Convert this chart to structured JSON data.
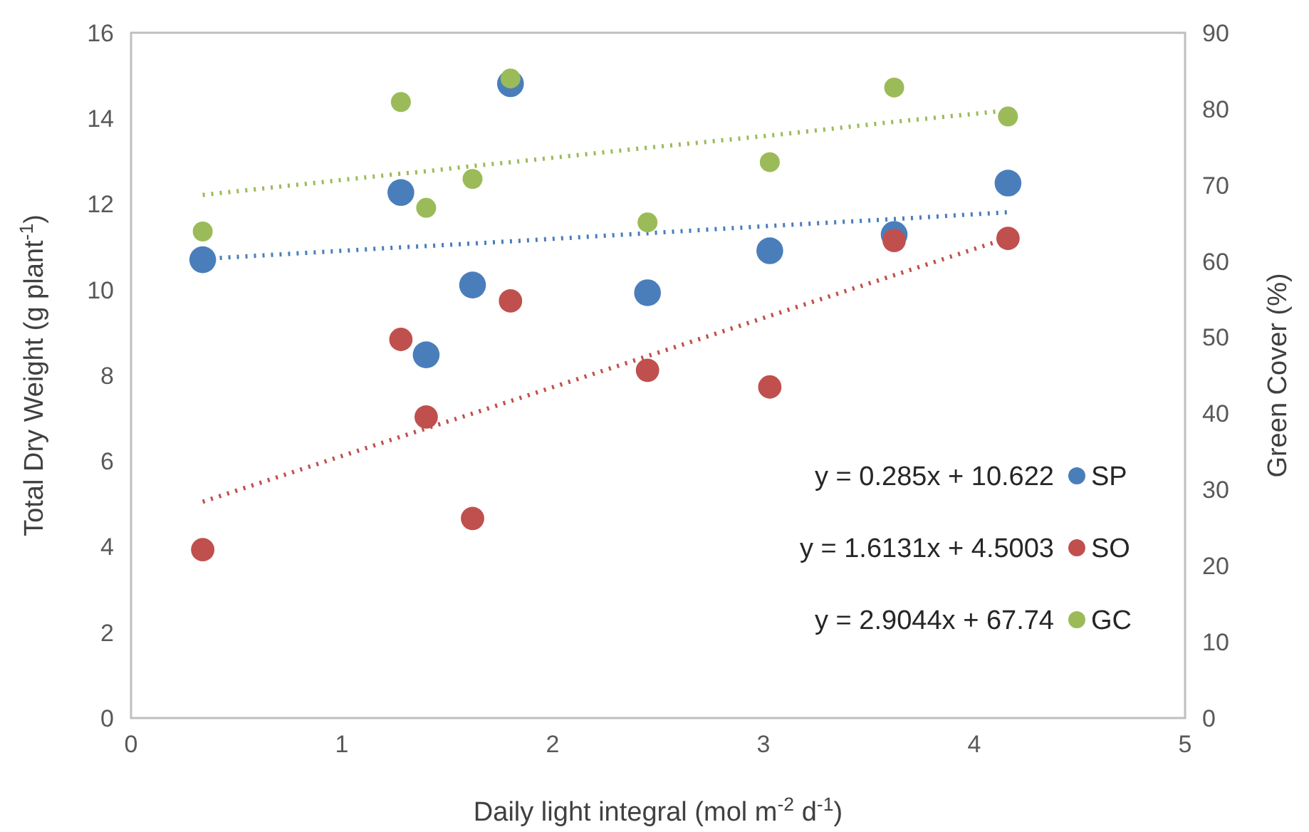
{
  "chart_data": {
    "type": "scatter",
    "xlabel": "Daily light integral (mol m$^{-2}$ d$^{-1}$)",
    "ylabel": "Total Dry Weight (g plant$^{-1}$)",
    "y2label": "Green Cover (%)",
    "xlim": [
      0,
      5
    ],
    "xticks": [
      0,
      1,
      2,
      3,
      4,
      5
    ],
    "ylim": [
      0,
      16
    ],
    "yticks": [
      0,
      2,
      4,
      6,
      8,
      10,
      12,
      14,
      16
    ],
    "y2lim": [
      0,
      90
    ],
    "y2ticks": [
      0,
      10,
      20,
      30,
      40,
      50,
      60,
      70,
      80,
      90
    ],
    "x": [
      0.34,
      1.28,
      1.4,
      1.62,
      1.8,
      2.45,
      3.03,
      3.62,
      4.16
    ],
    "grid": false,
    "legend": "bottom right",
    "marker": "circle",
    "series": [
      {
        "name": "SP",
        "color": "#4a7ebb",
        "values": [
          10.7,
          12.27,
          8.48,
          10.11,
          14.81,
          9.93,
          10.91,
          11.29,
          12.49
        ]
      },
      {
        "name": "SO",
        "color": "#c0504d",
        "values": [
          3.93,
          8.84,
          7.03,
          4.66,
          9.74,
          8.12,
          7.73,
          11.15,
          11.2
        ]
      },
      {
        "name": "GC",
        "color": "#9bbb59",
        "axis": "y2",
        "values": [
          63.9,
          80.9,
          67.0,
          70.8,
          84.0,
          65.1,
          73.0,
          82.8,
          79.0
        ]
      },
      {
        "type": "line",
        "color": "#4a7ebb",
        "line_style": "dotted",
        "marker": "none",
        "values": [
          10.72,
          10.99,
          11.02,
          11.08,
          11.13,
          11.32,
          11.49,
          11.65,
          11.81
        ]
      },
      {
        "type": "line",
        "color": "#c0504d",
        "line_style": "dotted",
        "marker": "none",
        "values": [
          5.05,
          6.57,
          6.76,
          7.11,
          7.4,
          8.45,
          9.39,
          10.34,
          11.21
        ]
      },
      {
        "type": "line",
        "color": "#9bbb59",
        "line_style": "dotted",
        "axis": "y2",
        "marker": "none",
        "values": [
          68.7,
          71.5,
          71.8,
          72.5,
          73.0,
          74.9,
          76.5,
          78.3,
          79.8
        ]
      }
    ],
    "annotations": [
      "y = 0.285x + 10.622",
      "y = 1.6131x + 4.5003",
      "y = 2.9044x + 67.74"
    ]
  }
}
